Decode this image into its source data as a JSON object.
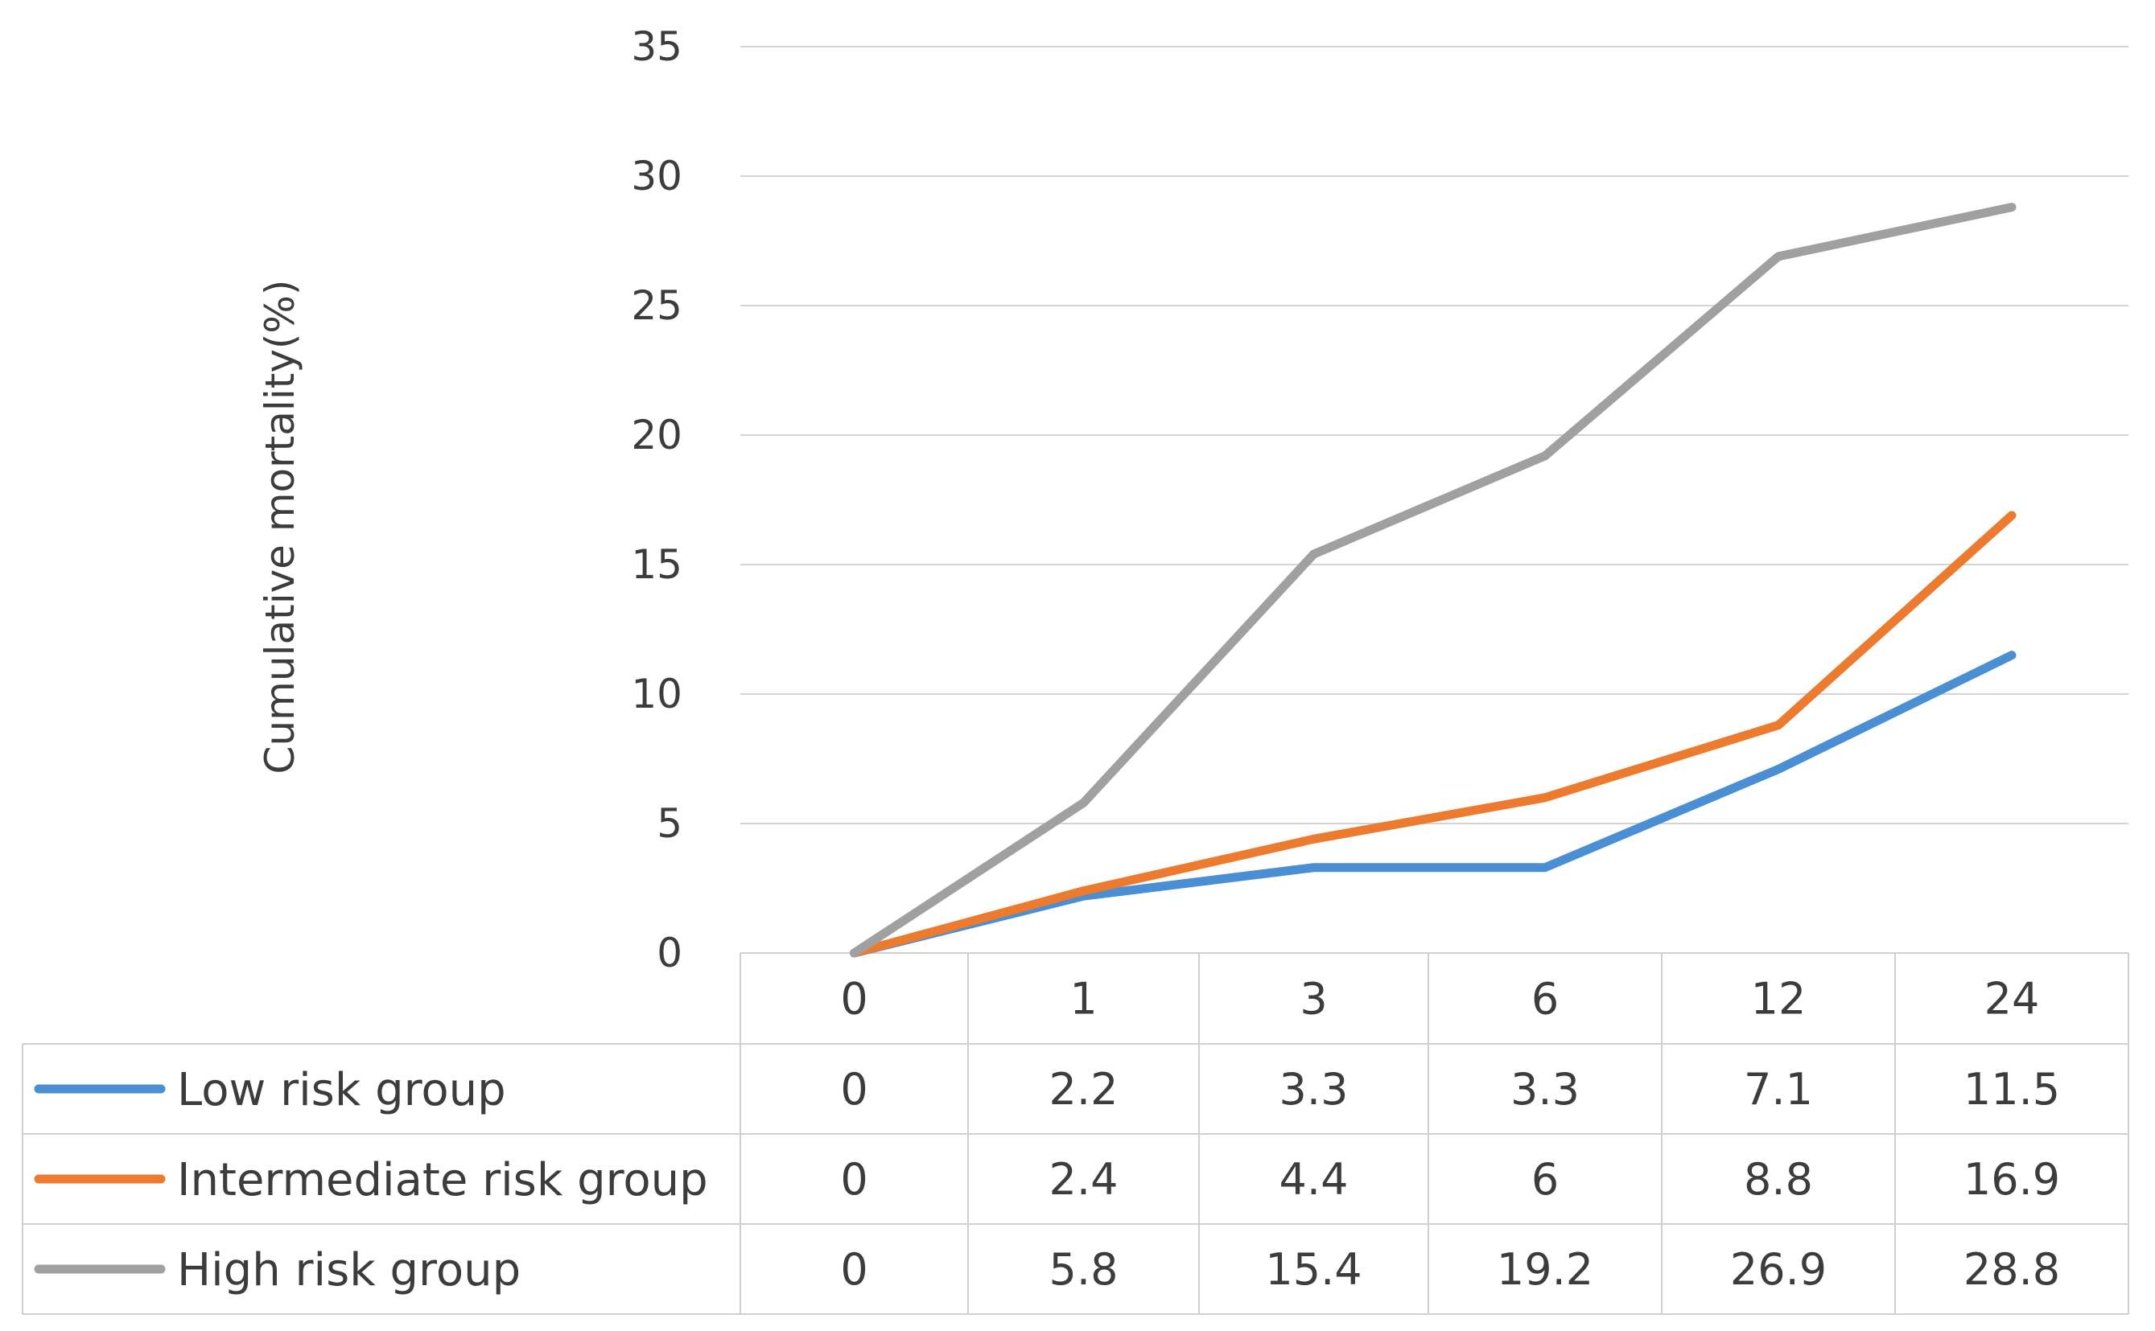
{
  "chart_data": {
    "type": "line",
    "title": "",
    "xlabel": "",
    "ylabel": "Cumulative mortality(%)",
    "ylim": [
      0,
      35
    ],
    "yticks": [
      "0",
      "5",
      "10",
      "15",
      "20",
      "25",
      "30",
      "35"
    ],
    "categories": [
      "0",
      "1",
      "3",
      "6",
      "12",
      "24"
    ],
    "grid": true,
    "legend": "data-table",
    "series": [
      {
        "name": "Low risk group",
        "color": "#4a8fd4",
        "values": [
          0,
          2.2,
          3.3,
          3.3,
          7.1,
          11.5
        ],
        "labels": [
          "0",
          "2.2",
          "3.3",
          "3.3",
          "7.1",
          "11.5"
        ]
      },
      {
        "name": "Intermediate risk group",
        "color": "#ec7a2f",
        "values": [
          0,
          2.4,
          4.4,
          6,
          8.8,
          16.9
        ],
        "labels": [
          "0",
          "2.4",
          "4.4",
          "6",
          "8.8",
          "16.9"
        ]
      },
      {
        "name": "High risk group",
        "color": "#a0a0a0",
        "values": [
          0,
          5.8,
          15.4,
          19.2,
          26.9,
          28.8
        ],
        "labels": [
          "0",
          "5.8",
          "15.4",
          "19.2",
          "26.9",
          "28.8"
        ]
      }
    ]
  }
}
